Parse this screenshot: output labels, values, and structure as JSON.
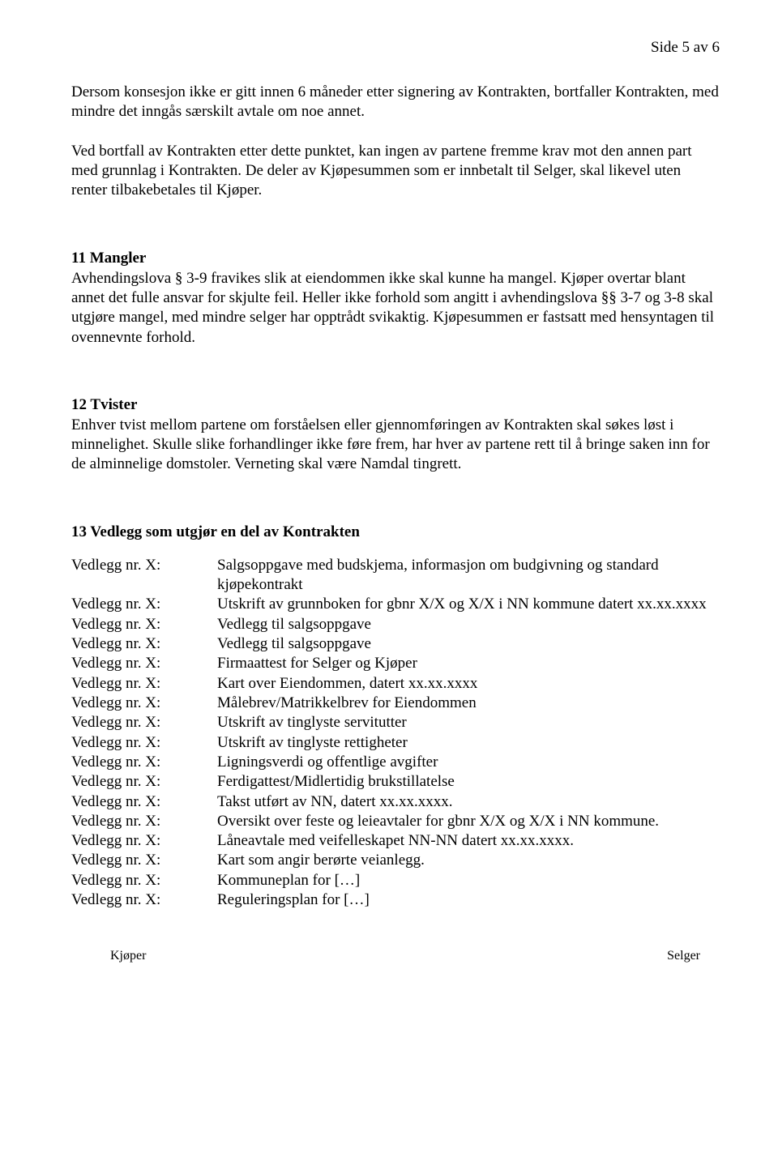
{
  "pageNumber": "Side 5 av 6",
  "intro": {
    "p1": "Dersom konsesjon ikke er gitt innen 6 måneder etter signering av Kontrakten, bortfaller Kontrakten, med mindre det inngås særskilt avtale om noe annet.",
    "p2": "Ved bortfall av Kontrakten etter dette punktet, kan ingen av partene fremme krav mot den annen part med grunnlag i Kontrakten. De deler av Kjøpesummen som er innbetalt til Selger, skal likevel uten renter tilbakebetales til Kjøper."
  },
  "s11": {
    "title": "11   Mangler",
    "body": "Avhendingslova § 3-9 fravikes slik at eiendommen ikke skal kunne ha mangel. Kjøper overtar blant annet det fulle ansvar for skjulte feil. Heller ikke forhold som angitt i avhendingslova §§ 3-7 og 3-8 skal utgjøre mangel, med mindre selger har opptrådt svikaktig. Kjøpesummen er fastsatt med hensyntagen til ovennevnte forhold."
  },
  "s12": {
    "title": "12   Tvister",
    "body": "Enhver tvist mellom partene om forståelsen eller gjennomføringen av Kontrakten skal søkes løst i minnelighet. Skulle slike forhandlinger ikke føre frem, har hver av partene rett til å bringe saken inn for de alminnelige domstoler. Verneting skal være Namdal tingrett."
  },
  "s13": {
    "title": "13   Vedlegg som utgjør en del av Kontrakten",
    "label": "Vedlegg nr. X:",
    "items": [
      "Salgsoppgave med budskjema, informasjon om budgivning og standard kjøpekontrakt",
      "Utskrift av grunnboken for gbnr X/X og X/X i NN kommune datert xx.xx.xxxx",
      "Vedlegg til salgsoppgave",
      "Vedlegg til salgsoppgave",
      "Firmaattest for Selger og Kjøper",
      "Kart over Eiendommen, datert xx.xx.xxxx",
      "Målebrev/Matrikkelbrev for Eiendommen",
      "Utskrift av tinglyste servitutter",
      "Utskrift av tinglyste rettigheter",
      "Ligningsverdi og offentlige avgifter",
      "Ferdigattest/Midlertidig brukstillatelse",
      "Takst utført av NN, datert xx.xx.xxxx.",
      "Oversikt over feste og leieavtaler for gbnr X/X og X/X i NN kommune.",
      "Låneavtale med veifelleskapet NN-NN datert xx.xx.xxxx.",
      "Kart som angir berørte veianlegg.",
      "Kommuneplan for […]",
      "Reguleringsplan for […]"
    ]
  },
  "footer": {
    "left": "Kjøper",
    "right": "Selger"
  }
}
